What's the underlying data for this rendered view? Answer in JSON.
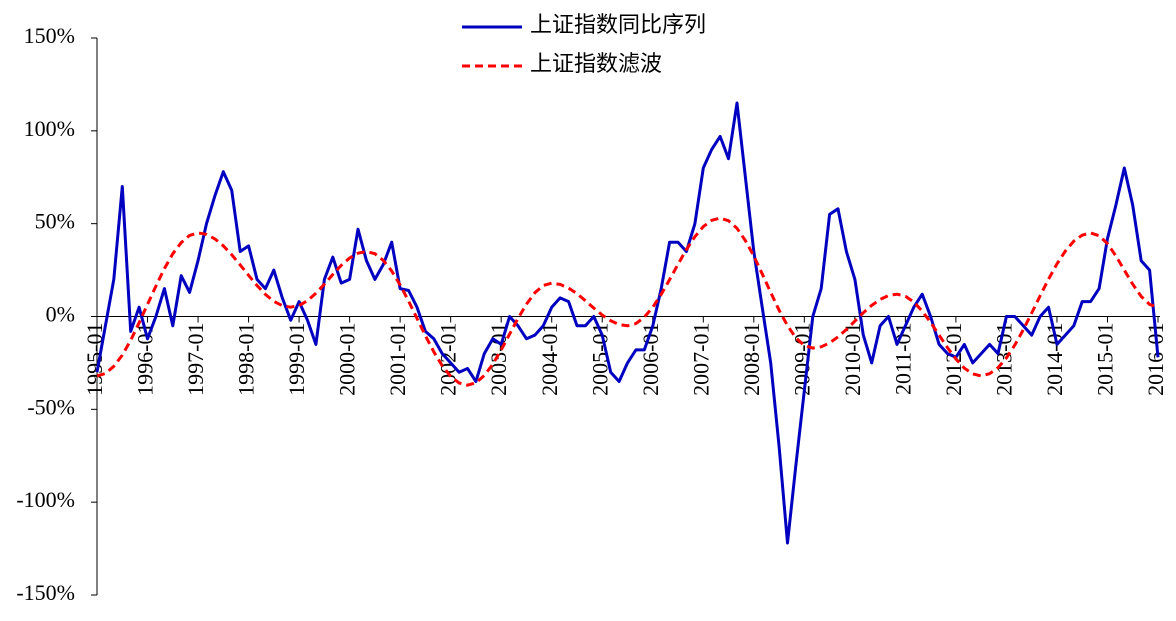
{
  "chart_data": {
    "type": "line",
    "x": [
      "1995-01",
      "1995-03",
      "1995-05",
      "1995-07",
      "1995-09",
      "1995-11",
      "1996-01",
      "1996-03",
      "1996-05",
      "1996-07",
      "1996-09",
      "1996-11",
      "1997-01",
      "1997-03",
      "1997-05",
      "1997-07",
      "1997-09",
      "1997-11",
      "1998-01",
      "1998-03",
      "1998-05",
      "1998-07",
      "1998-09",
      "1998-11",
      "1999-01",
      "1999-03",
      "1999-05",
      "1999-07",
      "1999-09",
      "1999-11",
      "2000-01",
      "2000-03",
      "2000-05",
      "2000-07",
      "2000-09",
      "2000-11",
      "2001-01",
      "2001-03",
      "2001-05",
      "2001-07",
      "2001-09",
      "2001-11",
      "2002-01",
      "2002-03",
      "2002-05",
      "2002-07",
      "2002-09",
      "2002-11",
      "2003-01",
      "2003-03",
      "2003-05",
      "2003-07",
      "2003-09",
      "2003-11",
      "2004-01",
      "2004-03",
      "2004-05",
      "2004-07",
      "2004-09",
      "2004-11",
      "2005-01",
      "2005-03",
      "2005-05",
      "2005-07",
      "2005-09",
      "2005-11",
      "2006-01",
      "2006-03",
      "2006-05",
      "2006-07",
      "2006-09",
      "2006-11",
      "2007-01",
      "2007-03",
      "2007-05",
      "2007-07",
      "2007-09",
      "2007-11",
      "2008-01",
      "2008-03",
      "2008-05",
      "2008-07",
      "2008-09",
      "2008-11",
      "2009-01",
      "2009-03",
      "2009-05",
      "2009-07",
      "2009-09",
      "2009-11",
      "2010-01",
      "2010-03",
      "2010-05",
      "2010-07",
      "2010-09",
      "2010-11",
      "2011-01",
      "2011-03",
      "2011-05",
      "2011-07",
      "2011-09",
      "2011-11",
      "2012-01",
      "2012-03",
      "2012-05",
      "2012-07",
      "2012-09",
      "2012-11",
      "2013-01",
      "2013-03",
      "2013-05",
      "2013-07",
      "2013-09",
      "2013-11",
      "2014-01",
      "2014-03",
      "2014-05",
      "2014-07",
      "2014-09",
      "2014-11",
      "2015-01",
      "2015-03",
      "2015-05",
      "2015-07",
      "2015-09",
      "2015-11",
      "2016-01"
    ],
    "series": [
      {
        "name": "上证指数同比序列",
        "color": "#0000c0",
        "dash": false,
        "values": [
          -30,
          -5,
          20,
          70,
          -8,
          5,
          -12,
          0,
          15,
          -5,
          22,
          13,
          30,
          50,
          65,
          78,
          68,
          35,
          38,
          20,
          15,
          25,
          10,
          -2,
          8,
          -2,
          -15,
          20,
          32,
          18,
          20,
          47,
          30,
          20,
          28,
          40,
          15,
          14,
          5,
          -8,
          -12,
          -20,
          -25,
          -30,
          -28,
          -35,
          -20,
          -12,
          -15,
          0,
          -5,
          -12,
          -10,
          -5,
          5,
          10,
          8,
          -5,
          -5,
          0,
          -10,
          -30,
          -35,
          -25,
          -18,
          -18,
          -5,
          15,
          40,
          40,
          35,
          50,
          80,
          90,
          97,
          85,
          115,
          75,
          35,
          5,
          -25,
          -70,
          -122,
          -80,
          -40,
          0,
          15,
          55,
          58,
          35,
          20,
          -10,
          -25,
          -5,
          0,
          -15,
          -5,
          5,
          12,
          0,
          -15,
          -20,
          -22,
          -15,
          -25,
          -20,
          -15,
          -20,
          0,
          0,
          -5,
          -10,
          0,
          5,
          -15,
          -10,
          -5,
          8,
          8,
          15,
          42,
          60,
          80,
          60,
          30,
          25,
          -22
        ]
      },
      {
        "name": "上证指数滤波",
        "color": "#ff0000",
        "dash": true,
        "values": [
          -32,
          -30.7,
          -26.8,
          -20.8,
          -12.8,
          -3.4,
          6.5,
          16.4,
          25.8,
          33.8,
          39.8,
          43.7,
          45,
          44.2,
          41.8,
          38.1,
          33.3,
          27.8,
          22.2,
          16.7,
          11.9,
          8.2,
          5.8,
          5,
          5.9,
          8.5,
          12.5,
          17.4,
          22.6,
          27.5,
          31.5,
          34.1,
          35,
          33.8,
          30.2,
          24.5,
          17,
          8.3,
          -1,
          -10.3,
          -19,
          -26.5,
          -32.2,
          -35.8,
          -37,
          -35.7,
          -31.8,
          -25.7,
          -18,
          -9.5,
          -1,
          6.7,
          12.8,
          16.7,
          18,
          17.3,
          15.3,
          12.3,
          8.5,
          4.5,
          0.8,
          -2.3,
          -4.3,
          -5,
          -3.8,
          -0.4,
          5,
          11.9,
          19.9,
          28.1,
          36.1,
          43,
          48.4,
          51.8,
          53,
          51.6,
          47.5,
          40.9,
          32.6,
          23,
          13,
          3.4,
          -4.9,
          -11.5,
          -15.6,
          -17,
          -16.3,
          -14.2,
          -11,
          -7,
          -2.5,
          2,
          6,
          9.2,
          11.3,
          12,
          10.9,
          7.8,
          2.9,
          -3.2,
          -10,
          -16.8,
          -22.9,
          -27.8,
          -30.9,
          -32,
          -30.8,
          -27.6,
          -22.3,
          -15.4,
          -7.1,
          1.9,
          11.1,
          20.1,
          28.4,
          35.3,
          40.6,
          43.8,
          45,
          43.5,
          39.2,
          32.6,
          25,
          17.4,
          10.8,
          6.5,
          5
        ]
      }
    ],
    "xticks": [
      "1995-01",
      "1996-01",
      "1997-01",
      "1998-01",
      "1999-01",
      "2000-01",
      "2001-01",
      "2002-01",
      "2003-01",
      "2004-01",
      "2005-01",
      "2006-01",
      "2007-01",
      "2008-01",
      "2009-01",
      "2010-01",
      "2011-01",
      "2012-01",
      "2013-01",
      "2014-01",
      "2015-01",
      "2016-01"
    ],
    "ylim": [
      -150,
      150
    ],
    "yticks": [
      {
        "value": -150,
        "label": "-150%"
      },
      {
        "value": -100,
        "label": "-100%"
      },
      {
        "value": -50,
        "label": "-50%"
      },
      {
        "value": 0,
        "label": "0%"
      },
      {
        "value": 50,
        "label": "50%"
      },
      {
        "value": 100,
        "label": "100%"
      },
      {
        "value": 150,
        "label": "150%"
      }
    ],
    "legend": "top",
    "grid": false
  }
}
